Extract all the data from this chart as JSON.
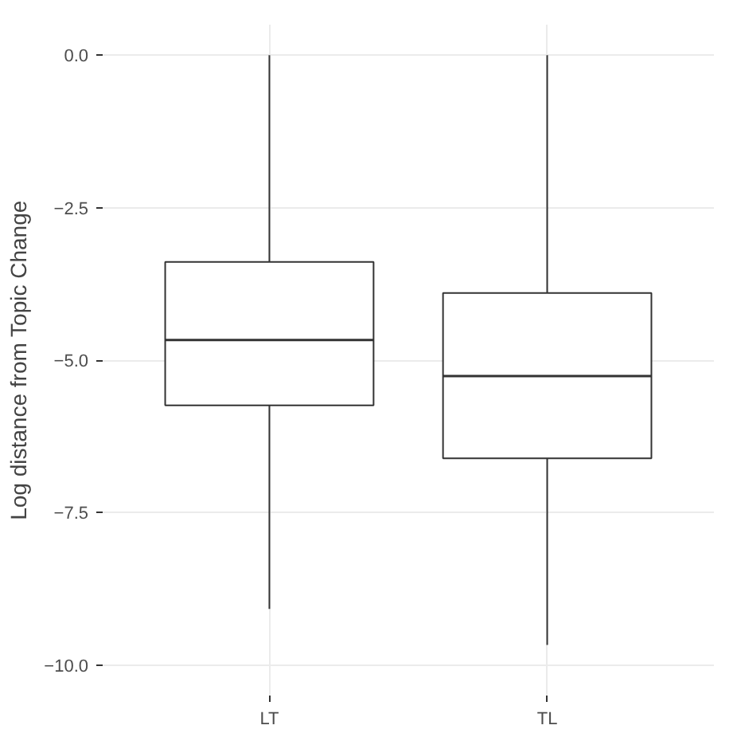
{
  "chart_data": {
    "type": "box",
    "ylabel": "Log distance from Topic Change",
    "categories": [
      "LT",
      "TL"
    ],
    "boxes": [
      {
        "low": -9.08,
        "q1": -5.74,
        "median": -4.67,
        "q3": -3.39,
        "high": 0.0
      },
      {
        "low": -9.67,
        "q1": -6.61,
        "median": -5.26,
        "q3": -3.9,
        "high": 0.0
      }
    ],
    "ylim": [
      -10.5,
      0.5
    ],
    "yticks": [
      {
        "value": 0,
        "label": "0.0"
      },
      {
        "value": -2.5,
        "label": "−2.5"
      },
      {
        "value": -5,
        "label": "−5.0"
      },
      {
        "value": -7.5,
        "label": "−7.5"
      },
      {
        "value": -10,
        "label": "−10.0"
      }
    ],
    "grid": true
  }
}
